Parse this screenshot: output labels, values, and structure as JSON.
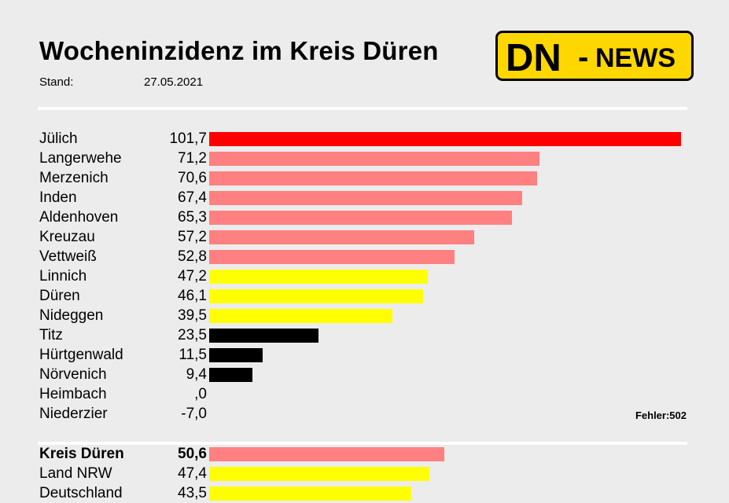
{
  "header": {
    "title": "Wocheninzidenz im Kreis Düren",
    "stand_label": "Stand:",
    "stand_date": "27.05.2021"
  },
  "logo": {
    "dn": "DN",
    "dash": "-",
    "news": "NEWS",
    "color": "#ffd700"
  },
  "colors": {
    "highest": "#ff0000",
    "above_50": "#ff8080",
    "between_35_50": "#ffff00",
    "below_35": "#000000",
    "divider": "#ffffff"
  },
  "error_note": "Fehler:502",
  "chart_data": {
    "type": "bar",
    "orientation": "horizontal",
    "categories": [
      "Jülich",
      "Langerwehe",
      "Merzenich",
      "Inden",
      "Aldenhoven",
      "Kreuzau",
      "Vettweiß",
      "Linnich",
      "Düren",
      "Nideggen",
      "Titz",
      "Hürtgenwald",
      "Nörvenich",
      "Heimbach",
      "Niederzier"
    ],
    "values": [
      101.7,
      71.2,
      70.6,
      67.4,
      65.3,
      57.2,
      52.8,
      47.2,
      46.1,
      39.5,
      23.5,
      11.5,
      9.4,
      0,
      -7.0
    ],
    "value_labels": [
      "101,7",
      "71,2",
      "70,6",
      "67,4",
      "65,3",
      "57,2",
      "52,8",
      "47,2",
      "46,1",
      "39,5",
      "23,5",
      "11,5",
      "9,4",
      ",0",
      "-7,0"
    ],
    "bar_colors": [
      "#ff0000",
      "#ff8080",
      "#ff8080",
      "#ff8080",
      "#ff8080",
      "#ff8080",
      "#ff8080",
      "#ffff00",
      "#ffff00",
      "#ffff00",
      "#000000",
      "#000000",
      "#000000",
      "#000000",
      "#000000"
    ],
    "summary": {
      "categories": [
        "Kreis Düren",
        "Land NRW",
        "Deutschland"
      ],
      "values": [
        50.6,
        47.4,
        43.5
      ],
      "value_labels": [
        "50,6",
        "47,4",
        "43,5"
      ],
      "bar_colors": [
        "#ff8080",
        "#ffff00",
        "#ffff00"
      ],
      "bold": [
        true,
        false,
        false
      ]
    },
    "xlim": [
      0,
      101.7
    ],
    "grid": false,
    "legend": "none"
  }
}
